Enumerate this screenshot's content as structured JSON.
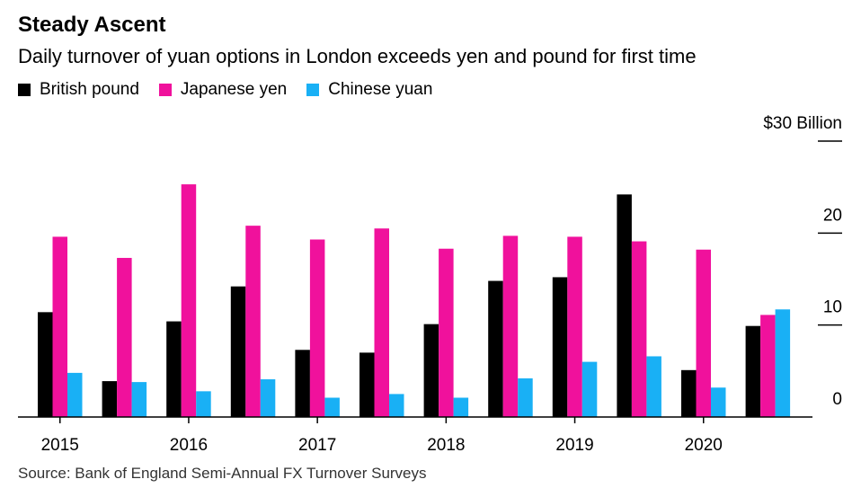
{
  "title": "Steady Ascent",
  "subtitle": "Daily turnover of yuan options in London exceeds yen and pound for first time",
  "source": "Source: Bank of England Semi-Annual FX Turnover Surveys",
  "chart_data": {
    "type": "bar",
    "title": "Steady Ascent",
    "subtitle": "Daily turnover of yuan options in London exceeds yen and pound for first time",
    "xlabel": "",
    "ylabel": "",
    "ylim": [
      0,
      30
    ],
    "y_ticks": [
      0,
      10,
      20,
      30
    ],
    "y_tick_labels": [
      "0",
      "10",
      "20",
      "$30 Billion"
    ],
    "x_tick_labels": [
      "2015",
      "2016",
      "2017",
      "2018",
      "2019",
      "2020"
    ],
    "legend_position": "top-left",
    "grid": false,
    "categories": [
      "2015 H1",
      "2015 H2",
      "2016 H1",
      "2016 H2",
      "2017 H1",
      "2017 H2",
      "2018 H1",
      "2018 H2",
      "2019 H1",
      "2019 H2",
      "2020 H1",
      "2020 H2"
    ],
    "series": [
      {
        "name": "British pound",
        "color": "#000000",
        "values": [
          11.4,
          3.9,
          10.4,
          14.2,
          7.3,
          7.0,
          10.1,
          14.8,
          15.2,
          24.2,
          5.1,
          9.9
        ]
      },
      {
        "name": "Japanese yen",
        "color": "#f0119c",
        "values": [
          19.6,
          17.3,
          25.3,
          20.8,
          19.3,
          20.5,
          18.3,
          19.7,
          19.6,
          19.1,
          18.2,
          11.1
        ]
      },
      {
        "name": "Chinese yuan",
        "color": "#19b0f5",
        "values": [
          4.8,
          3.8,
          2.8,
          4.1,
          2.1,
          2.5,
          2.1,
          4.2,
          6.0,
          6.6,
          3.2,
          11.7
        ]
      }
    ]
  }
}
